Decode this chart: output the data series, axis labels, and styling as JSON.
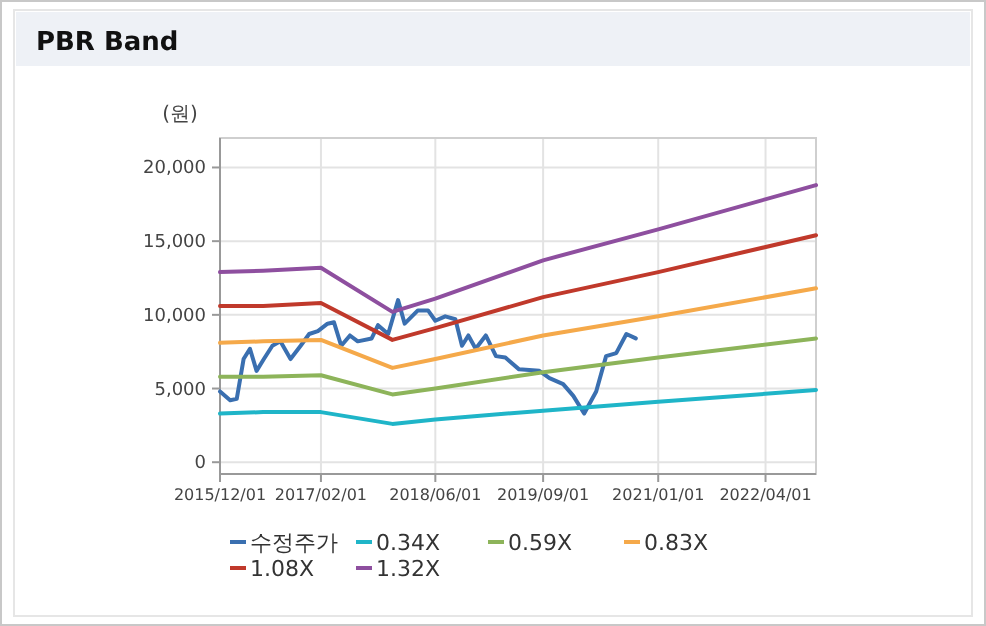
{
  "chart_data": {
    "type": "line",
    "title": "PBR Band",
    "ylabel": "(원)",
    "xlim": [
      "2015-12-01",
      "2022-11-01"
    ],
    "ylim": [
      -800,
      22000
    ],
    "xticks": [
      {
        "value": "2015-12-01",
        "label": "2015/12/01"
      },
      {
        "value": "2017-02-01",
        "label": "2017/02/01"
      },
      {
        "value": "2018-06-01",
        "label": "2018/06/01"
      },
      {
        "value": "2019-09-01",
        "label": "2019/09/01"
      },
      {
        "value": "2021-01-01",
        "label": "2021/01/01"
      },
      {
        "value": "2022-04-01",
        "label": "2022/04/01"
      }
    ],
    "yticks": [
      {
        "value": 0,
        "label": "0"
      },
      {
        "value": 5000,
        "label": "5,000"
      },
      {
        "value": 10000,
        "label": "10,000"
      },
      {
        "value": 15000,
        "label": "15,000"
      },
      {
        "value": 20000,
        "label": "20,000"
      }
    ],
    "grid": true,
    "legend": "bottom",
    "marker": "none",
    "line_style": "solid",
    "series": [
      {
        "name": "수정주가",
        "color": "#3a6fb0",
        "x": [
          "2015-12-01",
          "2016-01-13",
          "2016-02-10",
          "2016-03-10",
          "2016-04-06",
          "2016-05-04",
          "2016-06-04",
          "2016-07-10",
          "2016-08-13",
          "2016-09-25",
          "2016-11-07",
          "2016-12-13",
          "2017-01-19",
          "2017-03-01",
          "2017-03-28",
          "2017-04-28",
          "2017-06-04",
          "2017-07-07",
          "2017-09-04",
          "2017-10-01",
          "2017-11-13",
          "2017-12-25",
          "2018-01-22",
          "2018-03-19",
          "2018-05-01",
          "2018-06-01",
          "2018-07-13",
          "2018-08-25",
          "2018-09-22",
          "2018-10-19",
          "2018-11-19",
          "2019-01-01",
          "2019-02-13",
          "2019-03-25",
          "2019-05-22",
          "2019-08-16",
          "2019-09-28",
          "2019-11-25",
          "2020-01-07",
          "2020-02-22",
          "2020-04-13",
          "2020-05-25",
          "2020-07-07",
          "2020-08-19",
          "2020-09-28"
        ],
        "values": [
          4800,
          4200,
          4300,
          7000,
          7700,
          6200,
          7000,
          7900,
          8200,
          7000,
          7900,
          8700,
          8900,
          9400,
          9500,
          7900,
          8600,
          8200,
          8400,
          9300,
          8700,
          11000,
          9400,
          10300,
          10300,
          9600,
          9900,
          9700,
          7900,
          8600,
          7700,
          8600,
          7200,
          7100,
          6300,
          6200,
          5700,
          5300,
          4500,
          3300,
          4800,
          7200,
          7400,
          8700,
          8400
        ]
      },
      {
        "name": "0.34X",
        "color": "#1fb5c8",
        "x": [
          "2015-12-01",
          "2016-06-01",
          "2017-02-01",
          "2017-12-01",
          "2018-06-01",
          "2019-09-01",
          "2021-01-01",
          "2022-11-01"
        ],
        "values": [
          3300,
          3400,
          3400,
          2600,
          2900,
          3500,
          4100,
          4900
        ]
      },
      {
        "name": "0.59X",
        "color": "#8db45a",
        "x": [
          "2015-12-01",
          "2016-06-01",
          "2017-02-01",
          "2017-12-01",
          "2018-06-01",
          "2019-09-01",
          "2021-01-01",
          "2022-11-01"
        ],
        "values": [
          5800,
          5800,
          5900,
          4600,
          5000,
          6100,
          7100,
          8400
        ]
      },
      {
        "name": "0.83X",
        "color": "#f5a94a",
        "x": [
          "2015-12-01",
          "2016-06-01",
          "2017-02-01",
          "2017-12-01",
          "2018-06-01",
          "2019-09-01",
          "2021-01-01",
          "2022-11-01"
        ],
        "values": [
          8100,
          8200,
          8300,
          6400,
          7000,
          8600,
          9900,
          11800
        ]
      },
      {
        "name": "1.08X",
        "color": "#c0392b",
        "x": [
          "2015-12-01",
          "2016-06-01",
          "2017-02-01",
          "2017-12-01",
          "2018-06-01",
          "2019-09-01",
          "2021-01-01",
          "2022-11-01"
        ],
        "values": [
          10600,
          10600,
          10800,
          8300,
          9100,
          11200,
          12900,
          15400
        ]
      },
      {
        "name": "1.32X",
        "color": "#8e4f9f",
        "x": [
          "2015-12-01",
          "2016-06-01",
          "2017-02-01",
          "2017-12-01",
          "2018-06-01",
          "2019-09-01",
          "2021-01-01",
          "2022-11-01"
        ],
        "values": [
          12900,
          13000,
          13200,
          10200,
          11100,
          13700,
          15800,
          18800
        ]
      }
    ]
  }
}
